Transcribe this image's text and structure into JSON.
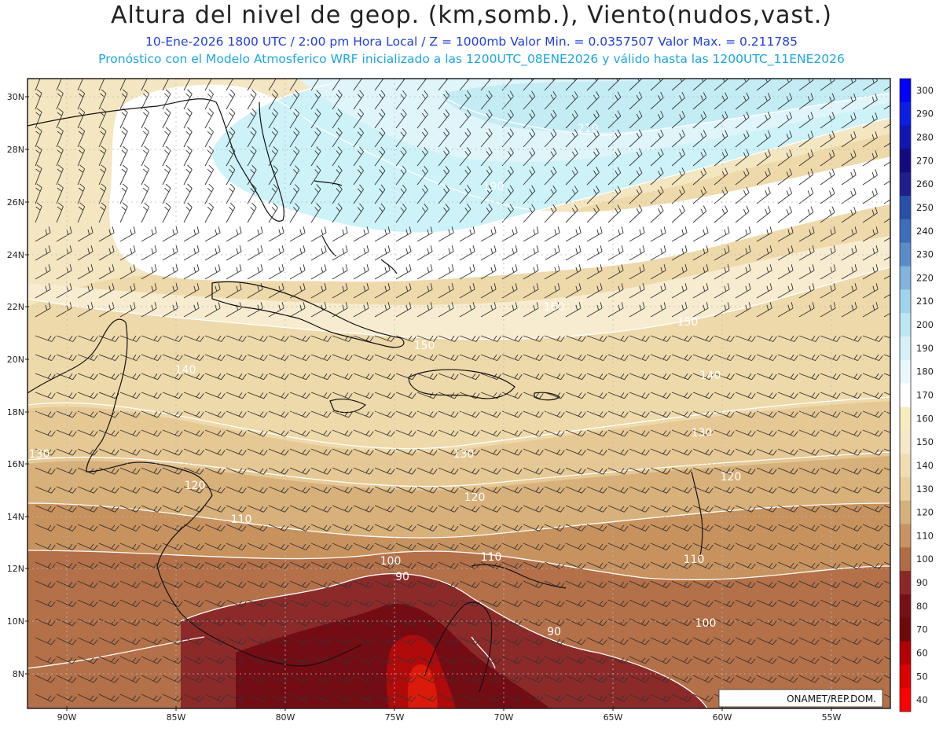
{
  "header": {
    "title": "Altura del nivel de geop. (km,somb.), Viento(nudos,vast.)",
    "line2": "10-Ene-2026  1800 UTC / 2:00 pm Hora Local / Z = 1000mb  Valor Min. = 0.0357507  Valor Max. = 0.211785",
    "line3": "Pronóstico con el Modelo Atmosferico WRF inicializado a las 1200UTC_08ENE2026 y válido hasta las  1200UTC_11ENE2026"
  },
  "axes": {
    "lat_labels": [
      "30N",
      "28N",
      "26N",
      "24N",
      "22N",
      "20N",
      "18N",
      "16N",
      "14N",
      "12N",
      "10N",
      "8N"
    ],
    "lon_labels": [
      "90W",
      "85W",
      "80W",
      "75W",
      "70W",
      "65W",
      "60W",
      "55W"
    ]
  },
  "colorbar": {
    "labels": [
      "300",
      "290",
      "280",
      "270",
      "260",
      "250",
      "240",
      "230",
      "220",
      "210",
      "200",
      "190",
      "180",
      "170",
      "160",
      "150",
      "140",
      "130",
      "120",
      "110",
      "100",
      "90",
      "80",
      "70",
      "60",
      "50",
      "40"
    ],
    "colors": [
      "#0000ff",
      "#0a1ee6",
      "#0f16b4",
      "#140a82",
      "#1e1e8c",
      "#2850a8",
      "#3c6eb9",
      "#5a8cc8",
      "#82b4dc",
      "#a0d4ec",
      "#bce6f4",
      "#d6f0f8",
      "#e8f8fc",
      "#ffffff",
      "#f6ecc0",
      "#f4e8c8",
      "#f0ddb4",
      "#eacf9e",
      "#d6b07c",
      "#c89262",
      "#b06c44",
      "#8c2828",
      "#780f14",
      "#6e0a0a",
      "#b40000",
      "#dc0000",
      "#ff0000"
    ]
  },
  "contour_labels": [
    "210",
    "190",
    "180",
    "160",
    "150",
    "140",
    "130",
    "130",
    "120",
    "120",
    "130",
    "120",
    "110",
    "110",
    "100",
    "110",
    "100",
    "90",
    "90",
    "140",
    "150"
  ],
  "credit": "ONAMET/REP.DOM."
}
